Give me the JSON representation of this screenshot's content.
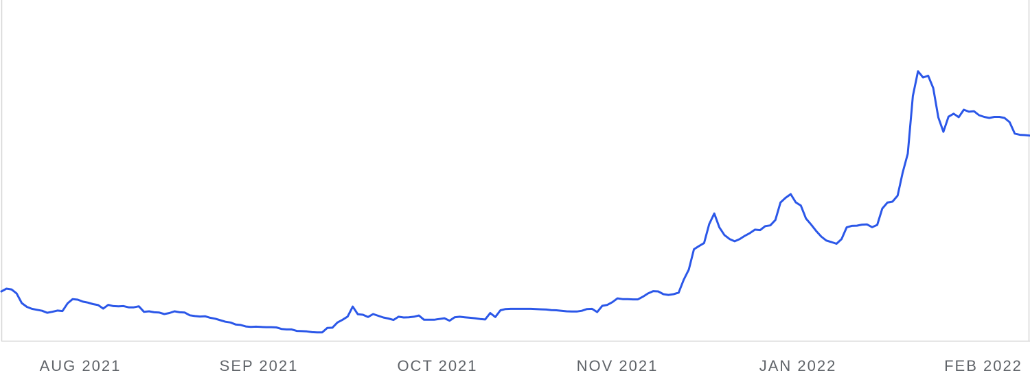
{
  "chart_data": {
    "type": "line",
    "title": "",
    "xlabel": "",
    "ylabel": "",
    "grid": false,
    "legend": "none",
    "colors": {
      "line": "#2b57e8",
      "axis": "#d6d6d6",
      "tick_text": "#5f6368",
      "background": "#ffffff"
    },
    "x_tick_labels": [
      "AUG 2021",
      "SEP 2021",
      "OCT 2021",
      "NOV 2021",
      "JAN 2022",
      "FEB 2022"
    ],
    "ylim": [
      0,
      100
    ],
    "series": [
      {
        "values": [
          17.4,
          18.5,
          18.2,
          16.6,
          12.7,
          11.2,
          10.4,
          10.0,
          9.6,
          8.8,
          9.2,
          9.7,
          9.5,
          12.6,
          14.3,
          14.1,
          13.3,
          12.9,
          12.3,
          11.9,
          10.5,
          12.0,
          11.5,
          11.4,
          11.5,
          11.0,
          11.0,
          11.4,
          9.2,
          9.4,
          9.0,
          8.9,
          8.3,
          8.7,
          9.4,
          9.0,
          8.9,
          7.8,
          7.5,
          7.3,
          7.4,
          6.8,
          6.4,
          5.8,
          5.2,
          4.9,
          4.1,
          3.9,
          3.3,
          3.1,
          3.2,
          3.1,
          3.0,
          3.0,
          2.9,
          2.3,
          2.1,
          2.1,
          1.5,
          1.4,
          1.3,
          1.0,
          0.9,
          0.9,
          2.7,
          2.8,
          4.9,
          6.0,
          7.3,
          11.3,
          8.2,
          8.0,
          7.1,
          8.3,
          7.6,
          6.9,
          6.5,
          5.9,
          7.2,
          6.9,
          7.0,
          7.2,
          7.7,
          6.0,
          6.0,
          6.0,
          6.3,
          6.6,
          5.6,
          7.0,
          7.2,
          7.0,
          6.8,
          6.6,
          6.3,
          6.1,
          8.7,
          7.1,
          9.8,
          10.3,
          10.4,
          10.4,
          10.4,
          10.4,
          10.4,
          10.3,
          10.2,
          10.1,
          9.9,
          9.8,
          9.6,
          9.4,
          9.3,
          9.3,
          9.6,
          10.3,
          10.4,
          9.1,
          11.6,
          12.0,
          13.1,
          14.6,
          14.3,
          14.3,
          14.2,
          14.2,
          15.3,
          16.6,
          17.5,
          17.4,
          16.3,
          16.0,
          16.3,
          16.9,
          22.1,
          26.2,
          34.4,
          35.7,
          36.9,
          44.5,
          48.8,
          43.2,
          40.1,
          38.5,
          37.6,
          38.5,
          39.8,
          40.9,
          42.3,
          42.1,
          43.7,
          44.0,
          46.2,
          53.2,
          55.1,
          56.6,
          53.3,
          52.0,
          46.8,
          44.4,
          41.8,
          39.5,
          37.9,
          37.3,
          36.6,
          38.5,
          43.2,
          43.8,
          43.9,
          44.3,
          44.4,
          43.3,
          44.2,
          50.8,
          53.2,
          53.6,
          56.0,
          65.3,
          72.9,
          96.1,
          106.1,
          103.6,
          104.3,
          99.3,
          87.5,
          81.7,
          87.8,
          89.0,
          87.6,
          90.6,
          89.8,
          90.0,
          88.4,
          87.7,
          87.3,
          87.7,
          87.7,
          87.3,
          85.6,
          81.0,
          80.5,
          80.4,
          80.2
        ]
      }
    ]
  }
}
